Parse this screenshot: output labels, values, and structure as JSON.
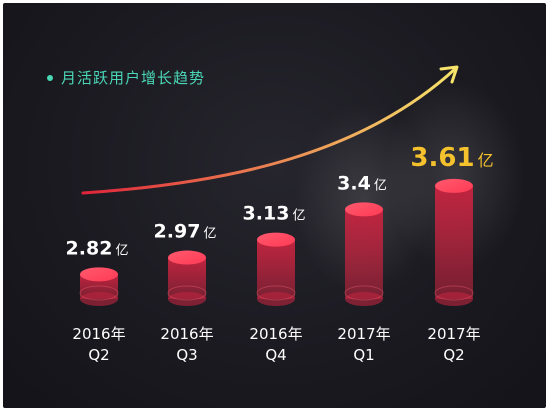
{
  "legend": {
    "label": "月活跃用户增长趋势",
    "color": "#4ad7b6"
  },
  "colors": {
    "cylinder_top": "#ff3a55",
    "cylinder_body": "#c0243f",
    "value_text": "#ffffff",
    "highlight_text": "#f5c12c",
    "axis_text": "#ffffff",
    "arrow_start": "#e0243a",
    "arrow_end": "#f7e36a"
  },
  "chart_data": {
    "type": "bar",
    "categories": [
      {
        "line1": "2016年",
        "line2": "Q2"
      },
      {
        "line1": "2016年",
        "line2": "Q3"
      },
      {
        "line1": "2016年",
        "line2": "Q4"
      },
      {
        "line1": "2017年",
        "line2": "Q1"
      },
      {
        "line1": "2017年",
        "line2": "Q2"
      }
    ],
    "series": [
      {
        "values": [
          2.82,
          2.97,
          3.13,
          3.4,
          3.61
        ],
        "labels": [
          "2.82",
          "2.97",
          "3.13",
          "3.4",
          "3.61"
        ]
      }
    ],
    "unit": "亿",
    "highlight_index": 4,
    "ylabel": "",
    "xlabel": ""
  }
}
